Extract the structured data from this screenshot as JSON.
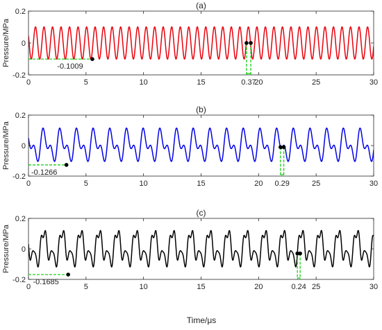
{
  "figure": {
    "xlabel": "Time/μs"
  },
  "chart_data": [
    {
      "type": "line",
      "title": "(a)",
      "xlabel": "",
      "ylabel": "Pressure/MPa",
      "xlim": [
        0,
        30
      ],
      "ylim": [
        -0.2,
        0.2
      ],
      "xticks": [
        0,
        5,
        10,
        15,
        20,
        25,
        30
      ],
      "yticks": [
        -0.2,
        0,
        0.2
      ],
      "xtick_labels": [
        "0",
        "5",
        "10",
        "15",
        "20",
        "25",
        "30"
      ],
      "ytick_labels": [
        "-0.2",
        "0",
        "0.2"
      ],
      "grid": false,
      "color": "#e8000b",
      "waveform": {
        "period": 0.74,
        "components": [
          {
            "amplitude": 0.1009,
            "period_multiple": 1,
            "phase": 1.1
          }
        ]
      },
      "min_marker": {
        "x": 5.55,
        "y": -0.1009,
        "label": "-0.1009"
      },
      "interval": {
        "x1": 18.95,
        "x2": 19.32,
        "y": 0.0,
        "label": "0.37"
      }
    },
    {
      "type": "line",
      "title": "(b)",
      "xlabel": "",
      "ylabel": "Pressure/MPa",
      "xlim": [
        0,
        30
      ],
      "ylim": [
        -0.2,
        0.2
      ],
      "xticks": [
        0,
        5,
        10,
        15,
        20,
        25,
        30
      ],
      "yticks": [
        -0.2,
        0,
        0.2
      ],
      "xtick_labels": [
        "0",
        "5",
        "10",
        "15",
        "20",
        "25",
        "30"
      ],
      "ytick_labels": [
        "-0.2",
        "0",
        "0.2"
      ],
      "grid": false,
      "color": "#0000e6",
      "waveform": {
        "period": 1.45,
        "components": [
          {
            "amplitude": 0.072,
            "period_multiple": 1,
            "phase": 0.3
          },
          {
            "amplitude": 0.054,
            "period_multiple": 0.5,
            "phase": 1.9
          }
        ]
      },
      "min_marker": {
        "x": 3.3,
        "y": -0.1266,
        "label": "-0.1266"
      },
      "interval": {
        "x1": 21.9,
        "x2": 22.19,
        "y": -0.01,
        "label": "0.29"
      }
    },
    {
      "type": "line",
      "title": "(c)",
      "xlabel": "",
      "ylabel": "Pressure/MPa",
      "xlim": [
        0,
        30
      ],
      "ylim": [
        -0.2,
        0.2
      ],
      "xticks": [
        0,
        5,
        10,
        15,
        20,
        25,
        30
      ],
      "yticks": [
        -0.2,
        0,
        0.2
      ],
      "xtick_labels": [
        "0",
        "5",
        "10",
        "15",
        "20",
        "25",
        "30"
      ],
      "ytick_labels": [
        "-0.2",
        "0",
        "0.2"
      ],
      "grid": false,
      "color": "#000000",
      "waveform": {
        "period": 1.6,
        "components": [
          {
            "amplitude": 0.078,
            "period_multiple": 1,
            "phase": 0.9
          },
          {
            "amplitude": 0.052,
            "period_multiple": 0.5,
            "phase": 2.4
          },
          {
            "amplitude": 0.028,
            "period_multiple": 0.3333,
            "phase": 0.5
          },
          {
            "amplitude": 0.024,
            "period_multiple": 0.25,
            "phase": 1.7
          }
        ]
      },
      "min_marker": {
        "x": 3.45,
        "y": -0.1685,
        "label": "-0.1685"
      },
      "interval": {
        "x1": 23.37,
        "x2": 23.61,
        "y": -0.03,
        "label": "0.24"
      }
    }
  ]
}
